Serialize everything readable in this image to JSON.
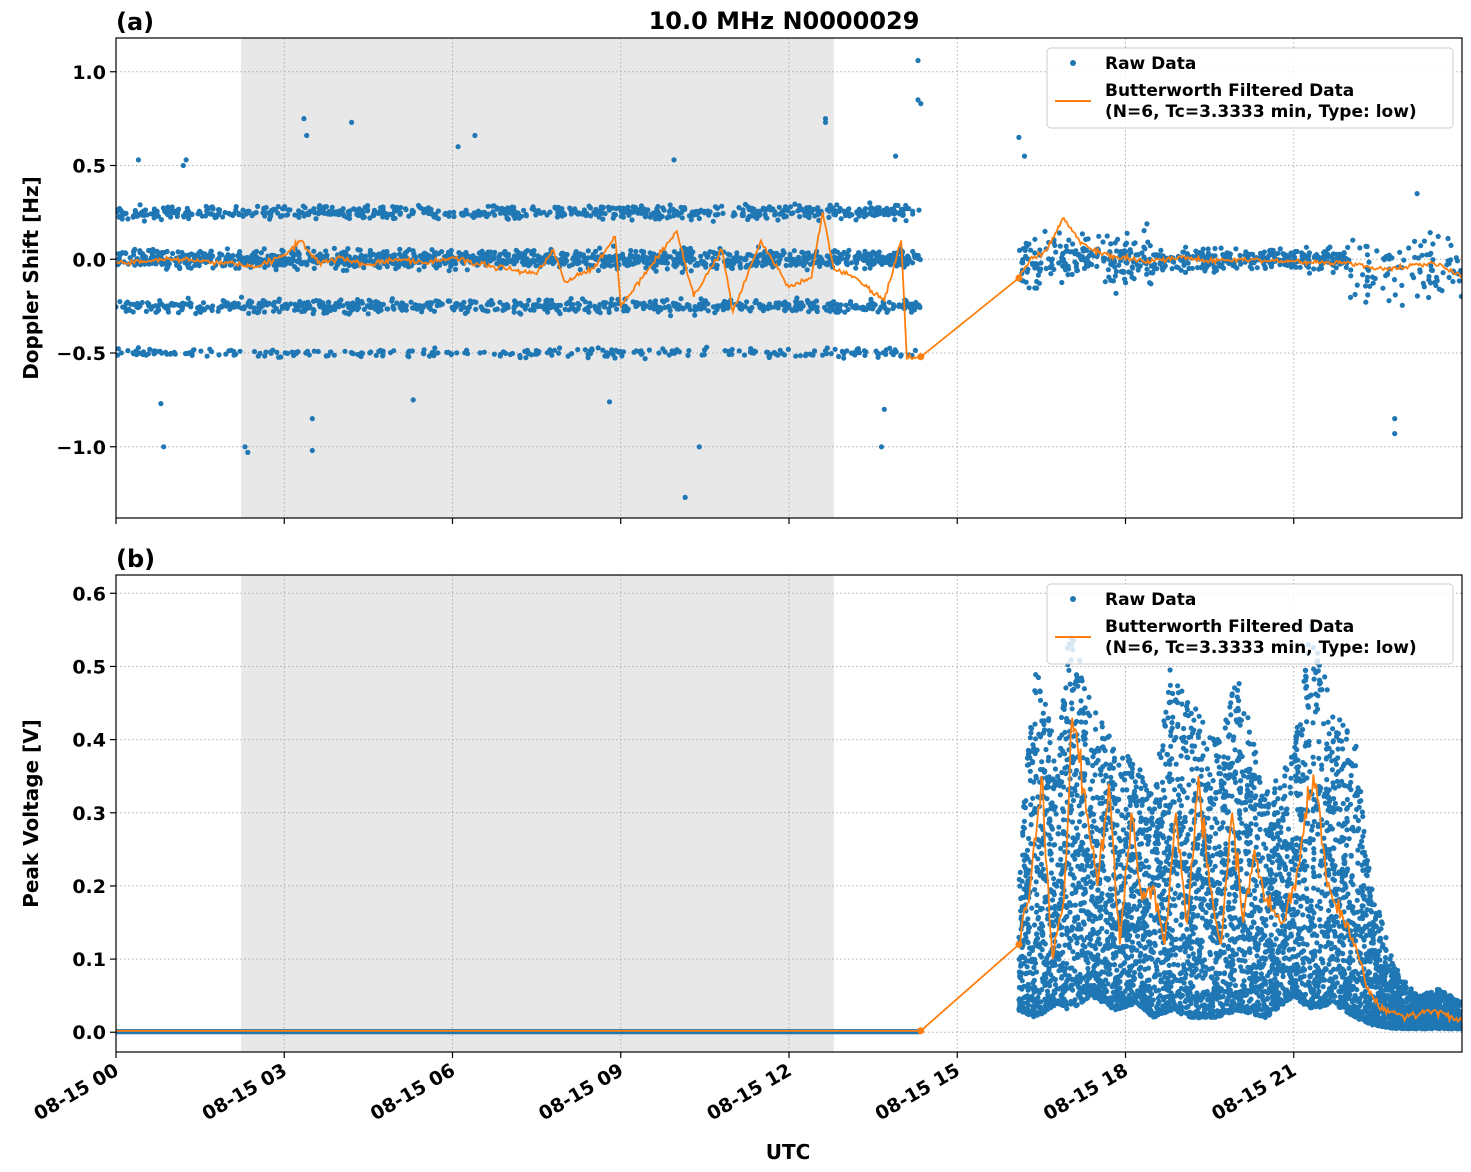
{
  "figure": {
    "title": "10.0 MHz N0000029",
    "xlabel": "UTC",
    "colors": {
      "raw": "#1f77b4",
      "filtered": "#ff7f0e",
      "night_shade": "#e8e8e8",
      "grid": "#b0b0b0"
    }
  },
  "legend": {
    "raw": "Raw Data",
    "filtered_line1": "Butterworth Filtered Data",
    "filtered_line2": "(N=6, Tc=3.3333 min, Type: low)"
  },
  "chart_data": [
    {
      "type": "scatter",
      "panel_label": "(a)",
      "ylabel": "Doppler Shift [Hz]",
      "x_unit": "UTC hour of 08-15",
      "xlim": [
        0,
        24
      ],
      "ylim": [
        -1.38,
        1.18
      ],
      "x_ticks": [
        0,
        3,
        6,
        9,
        12,
        15,
        18,
        21
      ],
      "x_tick_labels": [
        "08-15 00",
        "08-15 03",
        "08-15 06",
        "08-15 09",
        "08-15 12",
        "08-15 15",
        "08-15 18",
        "08-15 21"
      ],
      "y_ticks": [
        -1.0,
        -0.5,
        0.0,
        0.5,
        1.0
      ],
      "y_tick_labels": [
        "−1.0",
        "−0.5",
        "0.0",
        "0.5",
        "1.0"
      ],
      "grid": true,
      "legend_position": "top-right",
      "shaded_x_range": [
        2.23,
        12.8
      ],
      "data_gap": [
        14.35,
        16.1
      ],
      "series": [
        {
          "name": "Raw Data",
          "kind": "points",
          "bands": [
            {
              "x_range": [
                0,
                14.35
              ],
              "center": 0.0,
              "spread": 0.04
            },
            {
              "x_range": [
                0,
                14.35
              ],
              "center": 0.25,
              "spread": 0.03
            },
            {
              "x_range": [
                0,
                14.35
              ],
              "center": -0.25,
              "spread": 0.03
            },
            {
              "x_range": [
                0,
                14.35
              ],
              "center": -0.5,
              "spread": 0.02
            },
            {
              "x_range": [
                16.1,
                18.5
              ],
              "center": 0.0,
              "spread": 0.12
            },
            {
              "x_range": [
                18.5,
                22.0
              ],
              "center": 0.0,
              "spread": 0.05
            },
            {
              "x_range": [
                22.0,
                24.0
              ],
              "center": -0.05,
              "spread": 0.15
            }
          ],
          "outliers": [
            [
              0.4,
              0.53
            ],
            [
              1.2,
              0.5
            ],
            [
              1.25,
              0.53
            ],
            [
              0.8,
              -0.77
            ],
            [
              0.85,
              -1.0
            ],
            [
              2.3,
              -1.0
            ],
            [
              2.35,
              -1.03
            ],
            [
              3.35,
              0.75
            ],
            [
              3.4,
              0.66
            ],
            [
              3.5,
              -0.85
            ],
            [
              3.5,
              -1.02
            ],
            [
              4.2,
              0.73
            ],
            [
              5.3,
              -0.75
            ],
            [
              6.1,
              0.6
            ],
            [
              6.4,
              0.66
            ],
            [
              8.8,
              -0.76
            ],
            [
              9.95,
              0.53
            ],
            [
              10.15,
              -1.27
            ],
            [
              10.4,
              -1.0
            ],
            [
              12.65,
              0.75
            ],
            [
              12.65,
              0.73
            ],
            [
              13.65,
              -1.0
            ],
            [
              13.7,
              -0.8
            ],
            [
              13.9,
              0.55
            ],
            [
              14.3,
              0.85
            ],
            [
              14.3,
              1.06
            ],
            [
              14.35,
              0.83
            ],
            [
              16.1,
              0.65
            ],
            [
              16.2,
              0.55
            ],
            [
              22.8,
              -0.85
            ],
            [
              22.8,
              -0.93
            ],
            [
              23.2,
              0.35
            ]
          ]
        },
        {
          "name": "Butterworth Filtered Data",
          "kind": "line",
          "points": [
            [
              0.0,
              -0.02
            ],
            [
              0.5,
              -0.01
            ],
            [
              1.0,
              0.0
            ],
            [
              1.5,
              -0.01
            ],
            [
              2.0,
              -0.02
            ],
            [
              2.5,
              -0.04
            ],
            [
              3.0,
              0.02
            ],
            [
              3.3,
              0.1
            ],
            [
              3.6,
              -0.02
            ],
            [
              4.0,
              0.01
            ],
            [
              4.5,
              -0.03
            ],
            [
              5.0,
              0.0
            ],
            [
              5.5,
              -0.02
            ],
            [
              6.0,
              0.01
            ],
            [
              6.5,
              -0.03
            ],
            [
              7.0,
              -0.05
            ],
            [
              7.5,
              -0.08
            ],
            [
              7.8,
              0.05
            ],
            [
              8.0,
              -0.12
            ],
            [
              8.5,
              -0.05
            ],
            [
              8.9,
              0.12
            ],
            [
              9.0,
              -0.25
            ],
            [
              9.5,
              -0.05
            ],
            [
              10.0,
              0.15
            ],
            [
              10.3,
              -0.2
            ],
            [
              10.8,
              0.05
            ],
            [
              11.0,
              -0.28
            ],
            [
              11.5,
              0.1
            ],
            [
              12.0,
              -0.15
            ],
            [
              12.4,
              -0.1
            ],
            [
              12.6,
              0.25
            ],
            [
              12.8,
              -0.05
            ],
            [
              13.2,
              -0.1
            ],
            [
              13.7,
              -0.22
            ],
            [
              14.0,
              0.1
            ],
            [
              14.1,
              -0.53
            ],
            [
              14.35,
              -0.52
            ],
            [
              16.1,
              -0.1
            ],
            [
              16.3,
              0.0
            ],
            [
              16.6,
              0.05
            ],
            [
              16.9,
              0.22
            ],
            [
              17.2,
              0.08
            ],
            [
              17.6,
              0.03
            ],
            [
              18.0,
              0.0
            ],
            [
              18.5,
              -0.01
            ],
            [
              19.0,
              0.01
            ],
            [
              19.5,
              -0.01
            ],
            [
              20.0,
              0.0
            ],
            [
              21.0,
              -0.01
            ],
            [
              22.0,
              -0.02
            ],
            [
              22.5,
              -0.05
            ],
            [
              23.0,
              -0.04
            ],
            [
              23.5,
              -0.02
            ],
            [
              24.0,
              -0.09
            ]
          ]
        }
      ]
    },
    {
      "type": "scatter",
      "panel_label": "(b)",
      "ylabel": "Peak Voltage [V]",
      "x_unit": "UTC hour of 08-15",
      "xlim": [
        0,
        24
      ],
      "ylim": [
        -0.027,
        0.625
      ],
      "x_ticks": [
        0,
        3,
        6,
        9,
        12,
        15,
        18,
        21
      ],
      "x_tick_labels": [
        "08-15 00",
        "08-15 03",
        "08-15 06",
        "08-15 09",
        "08-15 12",
        "08-15 15",
        "08-15 18",
        "08-15 21"
      ],
      "y_ticks": [
        0.0,
        0.1,
        0.2,
        0.3,
        0.4,
        0.5,
        0.6
      ],
      "y_tick_labels": [
        "0.0",
        "0.1",
        "0.2",
        "0.3",
        "0.4",
        "0.5",
        "0.6"
      ],
      "grid": true,
      "legend_position": "top-right",
      "shaded_x_range": [
        2.23,
        12.8
      ],
      "data_gap": [
        14.35,
        16.1
      ],
      "series": [
        {
          "name": "Raw Data",
          "kind": "points",
          "envelope": [
            [
              0.0,
              0.0,
              0.003
            ],
            [
              14.35,
              0.0,
              0.003
            ],
            [
              16.1,
              0.03,
              0.25
            ],
            [
              16.4,
              0.02,
              0.5
            ],
            [
              16.8,
              0.04,
              0.38
            ],
            [
              17.0,
              0.03,
              0.57
            ],
            [
              17.4,
              0.05,
              0.45
            ],
            [
              17.8,
              0.03,
              0.4
            ],
            [
              18.2,
              0.04,
              0.37
            ],
            [
              18.5,
              0.02,
              0.32
            ],
            [
              18.8,
              0.03,
              0.5
            ],
            [
              19.2,
              0.02,
              0.45
            ],
            [
              19.6,
              0.02,
              0.4
            ],
            [
              20.0,
              0.03,
              0.49
            ],
            [
              20.5,
              0.02,
              0.33
            ],
            [
              21.0,
              0.05,
              0.38
            ],
            [
              21.3,
              0.03,
              0.57
            ],
            [
              21.7,
              0.04,
              0.44
            ],
            [
              22.1,
              0.02,
              0.4
            ],
            [
              22.4,
              0.01,
              0.2
            ],
            [
              22.8,
              0.005,
              0.09
            ],
            [
              23.2,
              0.005,
              0.05
            ],
            [
              23.6,
              0.005,
              0.06
            ],
            [
              24.0,
              0.005,
              0.04
            ]
          ]
        },
        {
          "name": "Butterworth Filtered Data",
          "kind": "line",
          "points": [
            [
              0.0,
              0.002
            ],
            [
              14.35,
              0.002
            ],
            [
              16.1,
              0.12
            ],
            [
              16.3,
              0.2
            ],
            [
              16.5,
              0.35
            ],
            [
              16.7,
              0.1
            ],
            [
              16.9,
              0.18
            ],
            [
              17.05,
              0.43
            ],
            [
              17.3,
              0.3
            ],
            [
              17.5,
              0.2
            ],
            [
              17.7,
              0.34
            ],
            [
              17.9,
              0.12
            ],
            [
              18.1,
              0.3
            ],
            [
              18.3,
              0.18
            ],
            [
              18.5,
              0.2
            ],
            [
              18.7,
              0.12
            ],
            [
              18.9,
              0.3
            ],
            [
              19.1,
              0.15
            ],
            [
              19.3,
              0.35
            ],
            [
              19.5,
              0.2
            ],
            [
              19.7,
              0.12
            ],
            [
              19.9,
              0.3
            ],
            [
              20.1,
              0.15
            ],
            [
              20.3,
              0.25
            ],
            [
              20.5,
              0.18
            ],
            [
              20.8,
              0.15
            ],
            [
              21.0,
              0.2
            ],
            [
              21.2,
              0.3
            ],
            [
              21.4,
              0.34
            ],
            [
              21.6,
              0.2
            ],
            [
              21.9,
              0.15
            ],
            [
              22.1,
              0.12
            ],
            [
              22.3,
              0.06
            ],
            [
              22.6,
              0.03
            ],
            [
              23.0,
              0.02
            ],
            [
              23.5,
              0.03
            ],
            [
              24.0,
              0.015
            ]
          ]
        }
      ]
    }
  ]
}
